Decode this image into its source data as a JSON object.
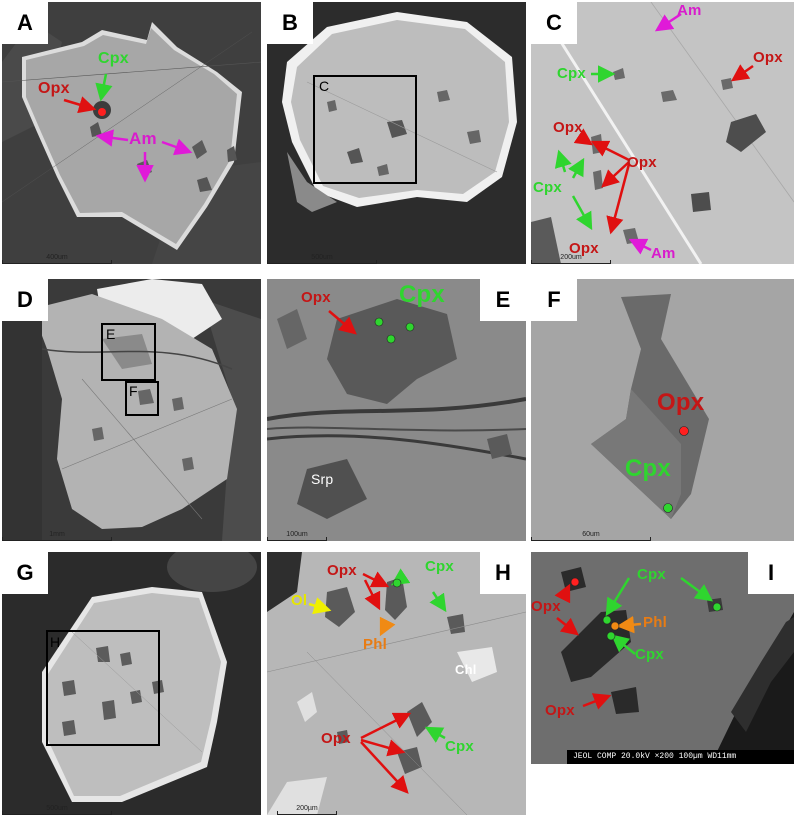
{
  "panels": {
    "A": {
      "letter": "A",
      "scale": "400um",
      "labels": {
        "cpx": "Cpx",
        "opx": "Opx",
        "am": "Am"
      }
    },
    "B": {
      "letter": "B",
      "scale": "500um",
      "box": "C"
    },
    "C": {
      "letter": "C",
      "scale": "200um",
      "labels": {
        "am_top": "Am",
        "opx_right": "Opx",
        "cpx_left": "Cpx",
        "opx_mid": "Opx",
        "opx_mid2": "Opx",
        "cpx_low": "Cpx",
        "opx_bottom": "Opx",
        "am_bottom": "Am"
      }
    },
    "D": {
      "letter": "D",
      "scale": "1mm",
      "box_e": "E",
      "box_f": "F"
    },
    "E": {
      "letter": "E",
      "scale": "100um",
      "labels": {
        "opx": "Opx",
        "cpx": "Cpx",
        "srp": "Srp"
      }
    },
    "F": {
      "letter": "F",
      "scale": "60um",
      "labels": {
        "opx": "Opx",
        "cpx": "Cpx"
      }
    },
    "G": {
      "letter": "G",
      "scale": "500um",
      "box": "H"
    },
    "H": {
      "letter": "H",
      "scale": "200µm",
      "labels": {
        "opx_top": "Opx",
        "cpx_top": "Cpx",
        "ol": "Ol",
        "phl": "Phl",
        "chl": "Chl",
        "opx_bottom": "Opx",
        "cpx_bottom": "Cpx"
      }
    },
    "I": {
      "letter": "I",
      "labels": {
        "opx_top": "Opx",
        "cpx_top": "Cpx",
        "phl": "Phl",
        "cpx_low": "Cpx",
        "opx_bottom": "Opx"
      },
      "jeol": "JEOL  COMP  20.0kV   ×200  100µm WD11mm"
    }
  },
  "colors": {
    "opx": "#c41616",
    "cpx": "#2fd52f",
    "am": "#d81ccc",
    "phl": "#e87c14",
    "ol": "#e6e600"
  }
}
